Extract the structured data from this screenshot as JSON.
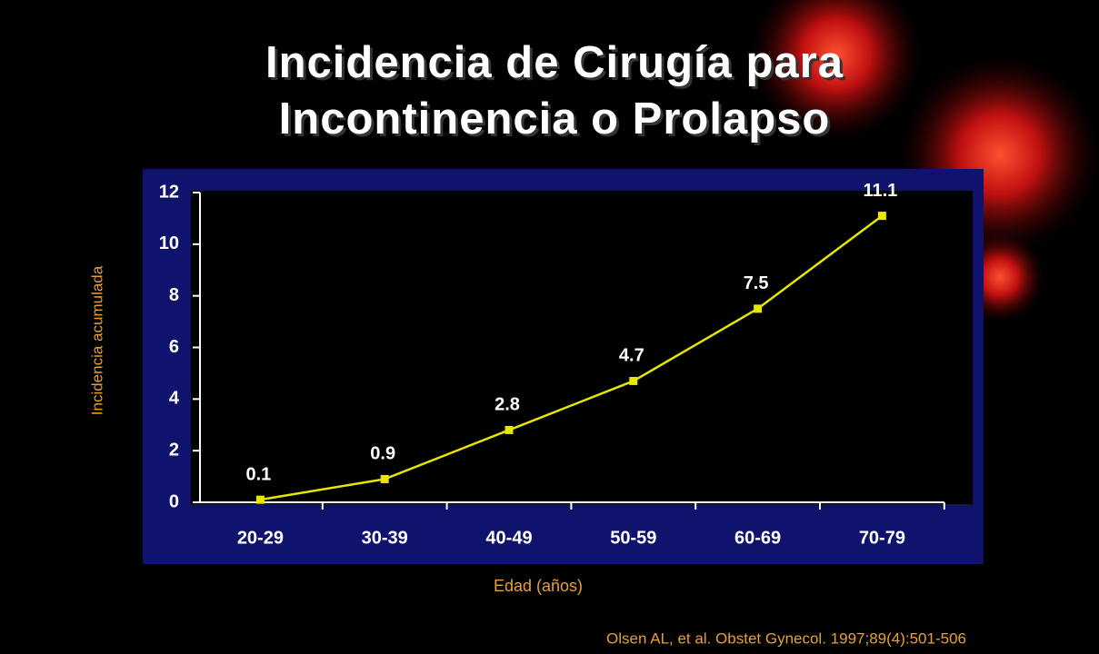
{
  "chart_data": {
    "type": "line",
    "title": "Incidencia de Cirugía para Incontinencia o Prolapso",
    "x_label": "Edad (años)",
    "y_label": "Incidencia acumulada",
    "source": "Olsen AL, et al. Obstet Gynecol. 1997;89(4):501-506",
    "categories": [
      "20-29",
      "30-39",
      "40-49",
      "50-59",
      "60-69",
      "70-79"
    ],
    "values": [
      0.1,
      0.9,
      2.8,
      4.7,
      7.5,
      11.1
    ],
    "color": "#e6e600",
    "ylim": [
      0,
      12
    ],
    "yticks": [
      0,
      2,
      4,
      6,
      8,
      10,
      12
    ]
  }
}
